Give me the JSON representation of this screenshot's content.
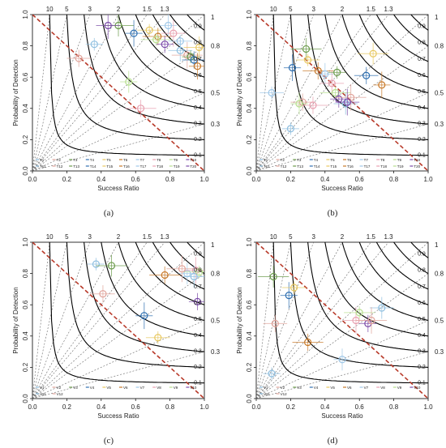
{
  "figure": {
    "captions": [
      "(a)",
      "(b)",
      "(c)",
      "(d)"
    ],
    "xlabel": "Success Ratio",
    "ylabel": "Probability of Detection",
    "x_ticks": [
      "0.0",
      "0.2",
      "0.4",
      "0.6",
      "0.8",
      "1.0"
    ],
    "y_ticks": [
      "0.0",
      "0.2",
      "0.4",
      "0.6",
      "0.8",
      "1.0"
    ],
    "bias_labels": [
      "10",
      "5",
      "3",
      "2",
      "1.5",
      "1.3"
    ],
    "bias_values": [
      10,
      5,
      3,
      2,
      1.5,
      1.3
    ],
    "bias_one_label": "1",
    "right_labels": [
      "0.8",
      "0.5",
      "0.3"
    ],
    "csi_labels": [
      "0.9",
      "0.8",
      "0.7",
      "0.6",
      "0.5",
      "0.4",
      "0.3",
      "0.2",
      "0.1"
    ],
    "csi_values": [
      0.9,
      0.8,
      0.7,
      0.6,
      0.5,
      0.4,
      0.3,
      0.2,
      0.1
    ],
    "curve_color": "#000000",
    "diagonal_color": "#b83a2a",
    "series_colors": [
      "#8fbfe0",
      "#e0a39a",
      "#6a9a4a",
      "#2e6fb0",
      "#e8c860",
      "#c87a2a",
      "#a0c8e8",
      "#e8a0b0",
      "#b8e090",
      "#7a4aa8"
    ]
  },
  "chart_data": [
    {
      "type": "scatter",
      "title": "",
      "xlim": [
        0,
        1
      ],
      "ylim": [
        0,
        1
      ],
      "legend_rows": [
        [
          "T1",
          "T2",
          "T3",
          "T4",
          "T5",
          "T6",
          "T7",
          "T8",
          "T9",
          "T10"
        ],
        [
          "T11",
          "T12",
          "T13",
          "T14",
          "T15",
          "T16",
          "T17",
          "T18",
          "T19",
          "T20"
        ]
      ],
      "points": [
        {
          "x": 0.36,
          "y": 0.81
        },
        {
          "x": 0.27,
          "y": 0.72
        },
        {
          "x": 0.5,
          "y": 0.93
        },
        {
          "x": 0.59,
          "y": 0.88
        },
        {
          "x": 0.68,
          "y": 0.9
        },
        {
          "x": 0.73,
          "y": 0.86
        },
        {
          "x": 0.79,
          "y": 0.93
        },
        {
          "x": 0.82,
          "y": 0.88
        },
        {
          "x": 0.72,
          "y": 0.84
        },
        {
          "x": 0.77,
          "y": 0.81
        },
        {
          "x": 0.86,
          "y": 0.77
        },
        {
          "x": 0.9,
          "y": 0.74
        },
        {
          "x": 0.92,
          "y": 0.73
        },
        {
          "x": 0.94,
          "y": 0.71
        },
        {
          "x": 0.97,
          "y": 0.79
        },
        {
          "x": 0.96,
          "y": 0.67
        },
        {
          "x": 0.86,
          "y": 0.83
        },
        {
          "x": 0.63,
          "y": 0.4
        },
        {
          "x": 0.56,
          "y": 0.57
        },
        {
          "x": 0.44,
          "y": 0.93
        }
      ]
    },
    {
      "type": "scatter",
      "title": "",
      "xlim": [
        0,
        1
      ],
      "ylim": [
        0,
        1
      ],
      "legend_rows": [
        [
          "T1",
          "T2",
          "T3",
          "T4",
          "T5",
          "T6",
          "T7",
          "T8",
          "T9",
          "T10"
        ],
        [
          "T11",
          "T12",
          "T13",
          "T14",
          "T15",
          "T16",
          "T17",
          "T18",
          "T19",
          "T20"
        ]
      ],
      "points": [
        {
          "x": 0.2,
          "y": 0.27
        },
        {
          "x": 0.27,
          "y": 0.44
        },
        {
          "x": 0.29,
          "y": 0.78
        },
        {
          "x": 0.21,
          "y": 0.66
        },
        {
          "x": 0.3,
          "y": 0.71
        },
        {
          "x": 0.36,
          "y": 0.64
        },
        {
          "x": 0.4,
          "y": 0.62
        },
        {
          "x": 0.44,
          "y": 0.56
        },
        {
          "x": 0.46,
          "y": 0.5
        },
        {
          "x": 0.48,
          "y": 0.46
        },
        {
          "x": 0.52,
          "y": 0.43
        },
        {
          "x": 0.55,
          "y": 0.47
        },
        {
          "x": 0.47,
          "y": 0.63
        },
        {
          "x": 0.64,
          "y": 0.61
        },
        {
          "x": 0.68,
          "y": 0.75
        },
        {
          "x": 0.73,
          "y": 0.55
        },
        {
          "x": 0.09,
          "y": 0.5
        },
        {
          "x": 0.33,
          "y": 0.42
        },
        {
          "x": 0.25,
          "y": 0.43
        },
        {
          "x": 0.53,
          "y": 0.44
        }
      ]
    },
    {
      "type": "scatter",
      "title": "",
      "xlim": [
        0,
        1
      ],
      "ylim": [
        0,
        1
      ],
      "legend_rows": [
        [
          "V1",
          "V2",
          "V3",
          "V4",
          "V5",
          "V6",
          "V7",
          "V8",
          "V9",
          "V10"
        ],
        [
          "V11",
          "V12"
        ]
      ],
      "points": [
        {
          "x": 0.37,
          "y": 0.86
        },
        {
          "x": 0.41,
          "y": 0.67
        },
        {
          "x": 0.46,
          "y": 0.85
        },
        {
          "x": 0.65,
          "y": 0.53
        },
        {
          "x": 0.73,
          "y": 0.39
        },
        {
          "x": 0.77,
          "y": 0.79
        },
        {
          "x": 0.9,
          "y": 0.8
        },
        {
          "x": 0.95,
          "y": 0.82
        },
        {
          "x": 0.97,
          "y": 0.81
        },
        {
          "x": 0.96,
          "y": 0.62
        },
        {
          "x": 0.94,
          "y": 0.78
        },
        {
          "x": 0.87,
          "y": 0.83
        }
      ]
    },
    {
      "type": "scatter",
      "title": "",
      "xlim": [
        0,
        1
      ],
      "ylim": [
        0,
        1
      ],
      "legend_rows": [
        [
          "V1",
          "V2",
          "V3",
          "V4",
          "V5",
          "V6",
          "V7",
          "V8",
          "V9",
          "V10"
        ],
        [
          "V11",
          "V12"
        ]
      ],
      "points": [
        {
          "x": 0.09,
          "y": 0.16
        },
        {
          "x": 0.11,
          "y": 0.48
        },
        {
          "x": 0.1,
          "y": 0.78
        },
        {
          "x": 0.19,
          "y": 0.66
        },
        {
          "x": 0.22,
          "y": 0.71
        },
        {
          "x": 0.3,
          "y": 0.36
        },
        {
          "x": 0.5,
          "y": 0.25
        },
        {
          "x": 0.58,
          "y": 0.5
        },
        {
          "x": 0.6,
          "y": 0.55
        },
        {
          "x": 0.65,
          "y": 0.48
        },
        {
          "x": 0.73,
          "y": 0.58
        },
        {
          "x": 0.67,
          "y": 0.5
        }
      ]
    }
  ]
}
